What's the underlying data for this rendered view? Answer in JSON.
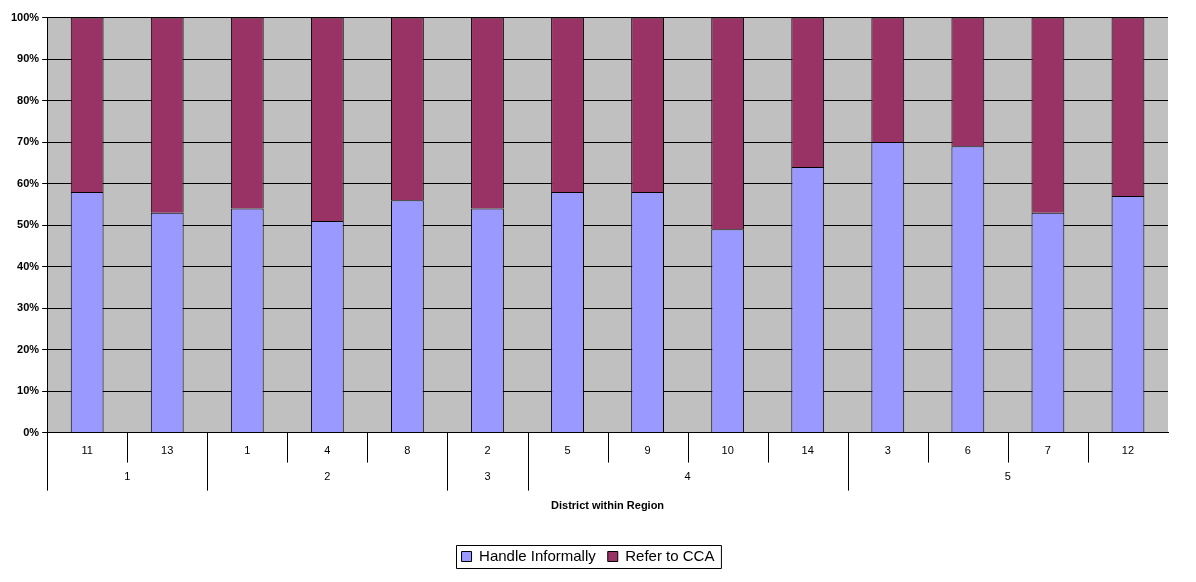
{
  "chart_data": {
    "type": "bar",
    "stacked": true,
    "xlabel": "District within Region",
    "categories": [
      "11",
      "13",
      "1",
      "4",
      "8",
      "2",
      "5",
      "9",
      "10",
      "14",
      "3",
      "6",
      "7",
      "12"
    ],
    "series": [
      {
        "name": "Handle Informally",
        "color": "#9999ff",
        "values": [
          58,
          53,
          54,
          51,
          56,
          54,
          58,
          58,
          49,
          64,
          70,
          69,
          53,
          57
        ]
      },
      {
        "name": "Refer to CCA",
        "color": "#993366",
        "values": [
          42,
          47,
          46,
          49,
          44,
          46,
          42,
          42,
          51,
          36,
          30,
          31,
          47,
          43
        ]
      }
    ],
    "annotations": [
      "1",
      "2",
      "3",
      "4",
      "5"
    ],
    "ylim": [
      0,
      100
    ],
    "yticks": [
      {
        "value": 0,
        "label": "0%"
      },
      {
        "value": 10,
        "label": "10%"
      },
      {
        "value": 20,
        "label": "20%"
      },
      {
        "value": 30,
        "label": "30%"
      },
      {
        "value": 40,
        "label": "40%"
      },
      {
        "value": 50,
        "label": "50%"
      },
      {
        "value": 60,
        "label": "60%"
      },
      {
        "value": 70,
        "label": "70%"
      },
      {
        "value": 80,
        "label": "80%"
      },
      {
        "value": 90,
        "label": "90%"
      },
      {
        "value": 100,
        "label": "100%"
      }
    ],
    "grid": "y",
    "legend": "bottom"
  }
}
